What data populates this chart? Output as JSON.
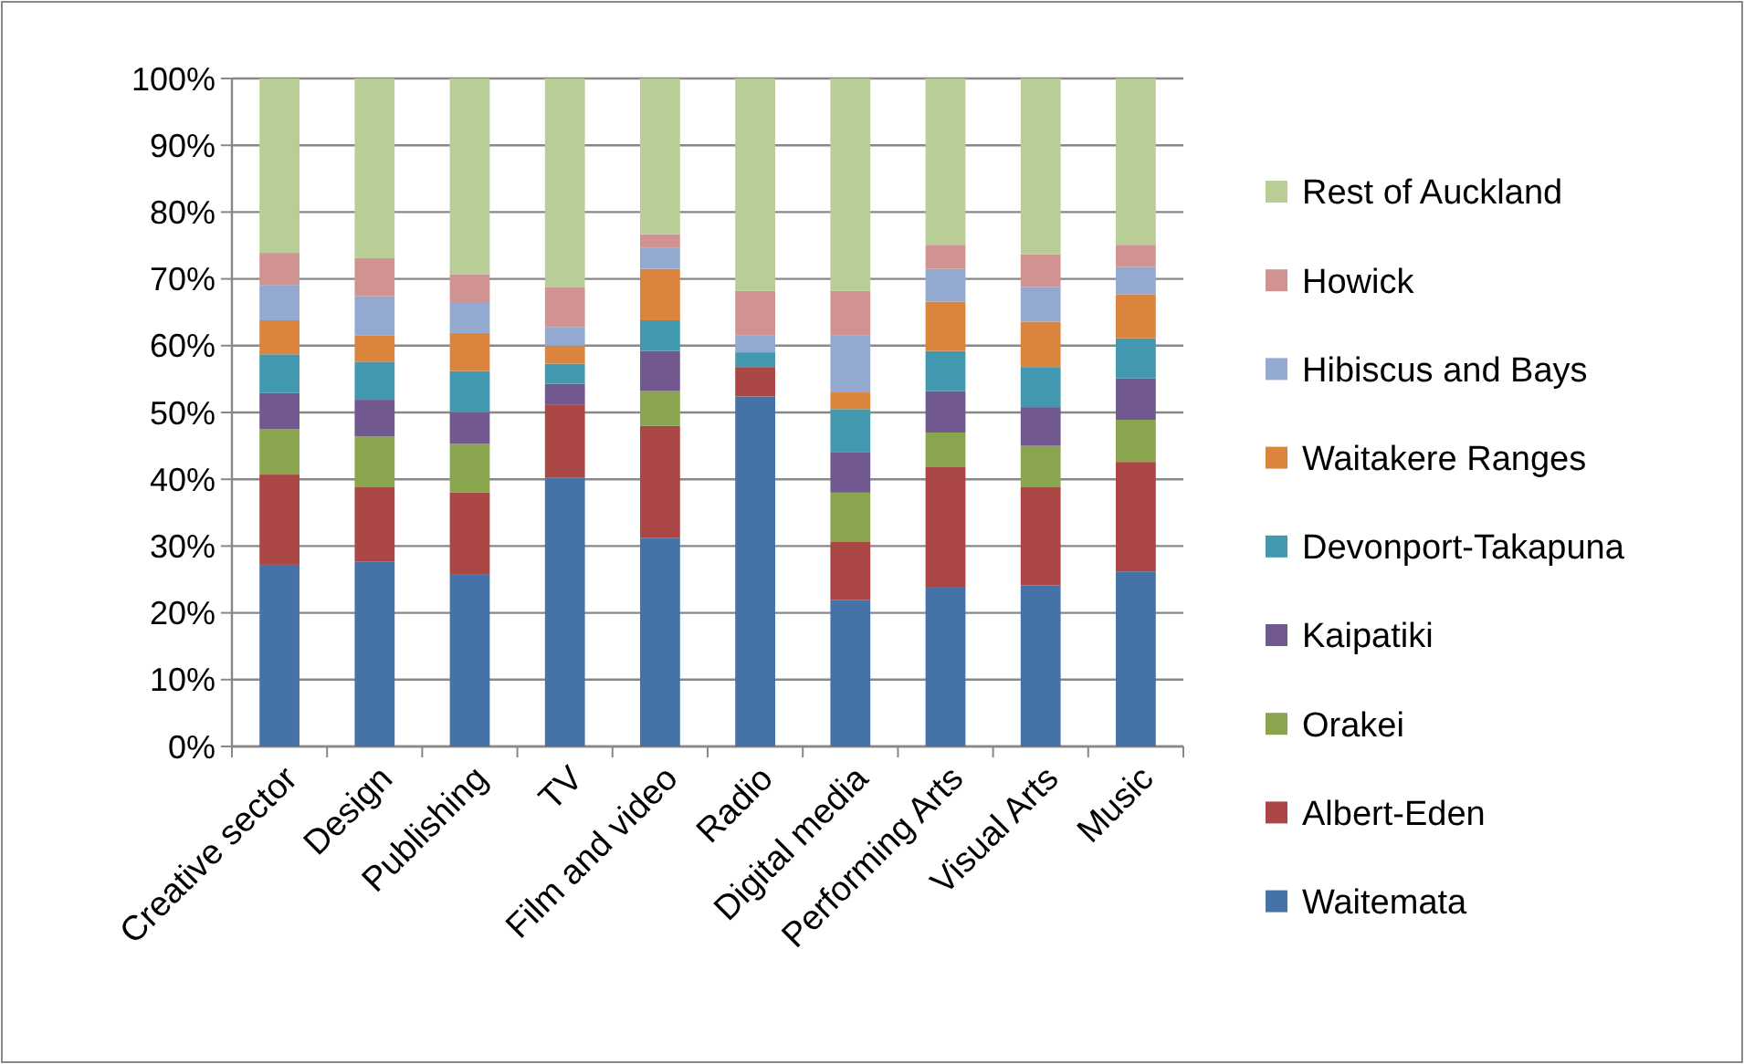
{
  "chart_data": {
    "type": "bar",
    "stacked": true,
    "categories": [
      "Creative sector",
      "Design",
      "Publishing",
      "TV",
      "Film and video",
      "Radio",
      "Digital media",
      "Performing Arts",
      "Visual Arts",
      "Music"
    ],
    "series": [
      {
        "name": "Waitemata",
        "color": "#4572a7",
        "values": [
          27.2,
          27.7,
          25.7,
          40.2,
          31.2,
          52.4,
          21.9,
          23.9,
          24.1,
          26.2
        ]
      },
      {
        "name": "Albert-Eden",
        "color": "#aa4643",
        "values": [
          13.5,
          11.1,
          12.3,
          11.0,
          16.8,
          4.4,
          8.7,
          17.9,
          14.7,
          16.4
        ]
      },
      {
        "name": "Orakei",
        "color": "#89a54e",
        "values": [
          6.8,
          7.6,
          7.3,
          0,
          5.2,
          0,
          7.4,
          5.2,
          6.2,
          6.3
        ]
      },
      {
        "name": "Kaipatiki",
        "color": "#71588f",
        "values": [
          5.4,
          5.5,
          4.7,
          3.1,
          6.0,
          0,
          6.0,
          6.2,
          5.8,
          6.2
        ]
      },
      {
        "name": "Devonport-Takapuna",
        "color": "#4198af",
        "values": [
          5.8,
          5.7,
          6.2,
          3.0,
          4.6,
          2.2,
          6.5,
          6.0,
          6.0,
          6.0
        ]
      },
      {
        "name": "Waitakere Ranges",
        "color": "#db843d",
        "values": [
          5.1,
          3.9,
          5.7,
          2.7,
          7.7,
          0,
          2.5,
          7.4,
          6.8,
          6.6
        ]
      },
      {
        "name": "Hibiscus and Bays",
        "color": "#93a9cf",
        "values": [
          5.3,
          5.9,
          4.5,
          2.8,
          3.2,
          2.5,
          8.5,
          4.9,
          5.2,
          4.1
        ]
      },
      {
        "name": "Howick",
        "color": "#d19392",
        "values": [
          4.8,
          5.7,
          4.3,
          6.0,
          2.0,
          6.7,
          6.7,
          3.6,
          4.9,
          3.3
        ]
      },
      {
        "name": "Rest of Auckland",
        "color": "#b9cd96",
        "values": [
          26.1,
          26.9,
          29.3,
          31.2,
          23.3,
          31.8,
          31.8,
          24.9,
          26.3,
          24.9
        ]
      }
    ],
    "ylim": [
      0,
      100
    ],
    "yticks": [
      {
        "value": 0,
        "label": "0%"
      },
      {
        "value": 10,
        "label": "10%"
      },
      {
        "value": 20,
        "label": "20%"
      },
      {
        "value": 30,
        "label": "30%"
      },
      {
        "value": 40,
        "label": "40%"
      },
      {
        "value": 50,
        "label": "50%"
      },
      {
        "value": 60,
        "label": "60%"
      },
      {
        "value": 70,
        "label": "70%"
      },
      {
        "value": 80,
        "label": "80%"
      },
      {
        "value": 90,
        "label": "90%"
      },
      {
        "value": 100,
        "label": "100%"
      }
    ],
    "grid": "y",
    "legend": "right"
  }
}
